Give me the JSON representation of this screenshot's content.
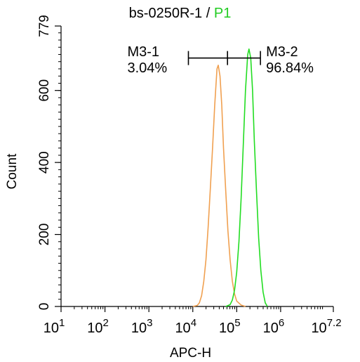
{
  "chart_data": {
    "type": "histogram",
    "title_prefix": "bs-0250R-1",
    "title_sep": " / ",
    "title_highlight": "P1",
    "xlabel": "APC-H",
    "ylabel": "Count",
    "x_scale": "log",
    "xlim": [
      1,
      7.2
    ],
    "ylim": [
      0,
      779
    ],
    "y_ticks": [
      0,
      200,
      400,
      600,
      779
    ],
    "x_tick_labels": [
      {
        "base": "10",
        "exp": "1",
        "pos": 1
      },
      {
        "base": "10",
        "exp": "2",
        "pos": 2
      },
      {
        "base": "10",
        "exp": "3",
        "pos": 3
      },
      {
        "base": "10",
        "exp": "4",
        "pos": 4
      },
      {
        "base": "10",
        "exp": "5",
        "pos": 5
      },
      {
        "base": "10",
        "exp": "6",
        "pos": 6
      },
      {
        "base": "10",
        "exp": "7.2",
        "pos": 7.2
      }
    ],
    "series": [
      {
        "color": "#f0a050",
        "points": [
          [
            4.0,
            0
          ],
          [
            4.1,
            3
          ],
          [
            4.15,
            10
          ],
          [
            4.2,
            30
          ],
          [
            4.25,
            70
          ],
          [
            4.3,
            130
          ],
          [
            4.35,
            220
          ],
          [
            4.4,
            330
          ],
          [
            4.45,
            440
          ],
          [
            4.5,
            560
          ],
          [
            4.55,
            660
          ],
          [
            4.58,
            670
          ],
          [
            4.62,
            640
          ],
          [
            4.66,
            560
          ],
          [
            4.7,
            440
          ],
          [
            4.75,
            320
          ],
          [
            4.8,
            210
          ],
          [
            4.85,
            130
          ],
          [
            4.9,
            70
          ],
          [
            4.95,
            35
          ],
          [
            5.0,
            15
          ],
          [
            5.1,
            4
          ],
          [
            5.2,
            0
          ]
        ]
      },
      {
        "color": "#22dd22",
        "points": [
          [
            4.75,
            0
          ],
          [
            4.85,
            5
          ],
          [
            4.9,
            18
          ],
          [
            4.95,
            45
          ],
          [
            5.0,
            95
          ],
          [
            5.05,
            180
          ],
          [
            5.1,
            300
          ],
          [
            5.15,
            450
          ],
          [
            5.2,
            600
          ],
          [
            5.25,
            700
          ],
          [
            5.28,
            715
          ],
          [
            5.32,
            690
          ],
          [
            5.36,
            600
          ],
          [
            5.4,
            460
          ],
          [
            5.45,
            320
          ],
          [
            5.5,
            190
          ],
          [
            5.55,
            100
          ],
          [
            5.6,
            40
          ],
          [
            5.65,
            10
          ],
          [
            5.7,
            0
          ]
        ]
      }
    ],
    "gates": [
      {
        "name": "M3-1",
        "percent": "3.04%"
      },
      {
        "name": "M3-2",
        "percent": "96.84%"
      }
    ],
    "gate_marker_x": [
      3.9,
      4.79,
      5.54
    ],
    "gate_marker_y": 690
  }
}
